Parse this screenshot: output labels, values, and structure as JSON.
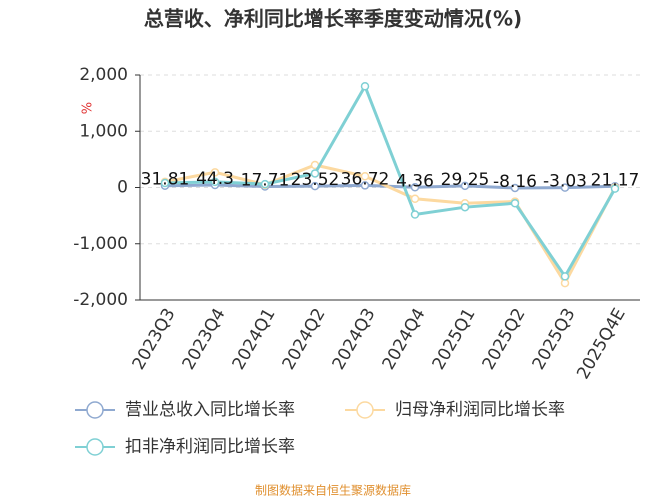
{
  "chart_data": {
    "type": "line",
    "title": "总营收、净利同比增长率季度变动情况(%)",
    "y_label": "%",
    "categories": [
      "2023Q3",
      "2023Q4",
      "2024Q1",
      "2024Q2",
      "2024Q3",
      "2024Q4",
      "2025Q1",
      "2025Q2",
      "2025Q3",
      "2025Q4E"
    ],
    "series": [
      {
        "name": "营业总收入同比增长率",
        "color": "#8fa9d0",
        "values": [
          31.81,
          44.3,
          17.71,
          23.52,
          36.72,
          4.36,
          29.25,
          -8.16,
          -3.03,
          21.17
        ]
      },
      {
        "name": "归母净利润同比增长率",
        "color": "#fcd9a0",
        "values": [
          100,
          270,
          50,
          400,
          200,
          -200,
          -280,
          -250,
          -1700,
          0
        ]
      },
      {
        "name": "扣非净利润同比增长率",
        "color": "#7fd0d4",
        "values": [
          80,
          100,
          60,
          250,
          1800,
          -480,
          -350,
          -280,
          -1580,
          -20
        ]
      }
    ],
    "ylim": [
      -2000,
      2000
    ],
    "yticks": [
      {
        "value": -2000,
        "label": "-2,000"
      },
      {
        "value": -1000,
        "label": "-1,000"
      },
      0,
      {
        "value": 1000,
        "label": "1,000"
      },
      {
        "value": 2000,
        "label": "2,000"
      }
    ],
    "grid": true,
    "source": "制图数据来自恒生聚源数据库"
  }
}
